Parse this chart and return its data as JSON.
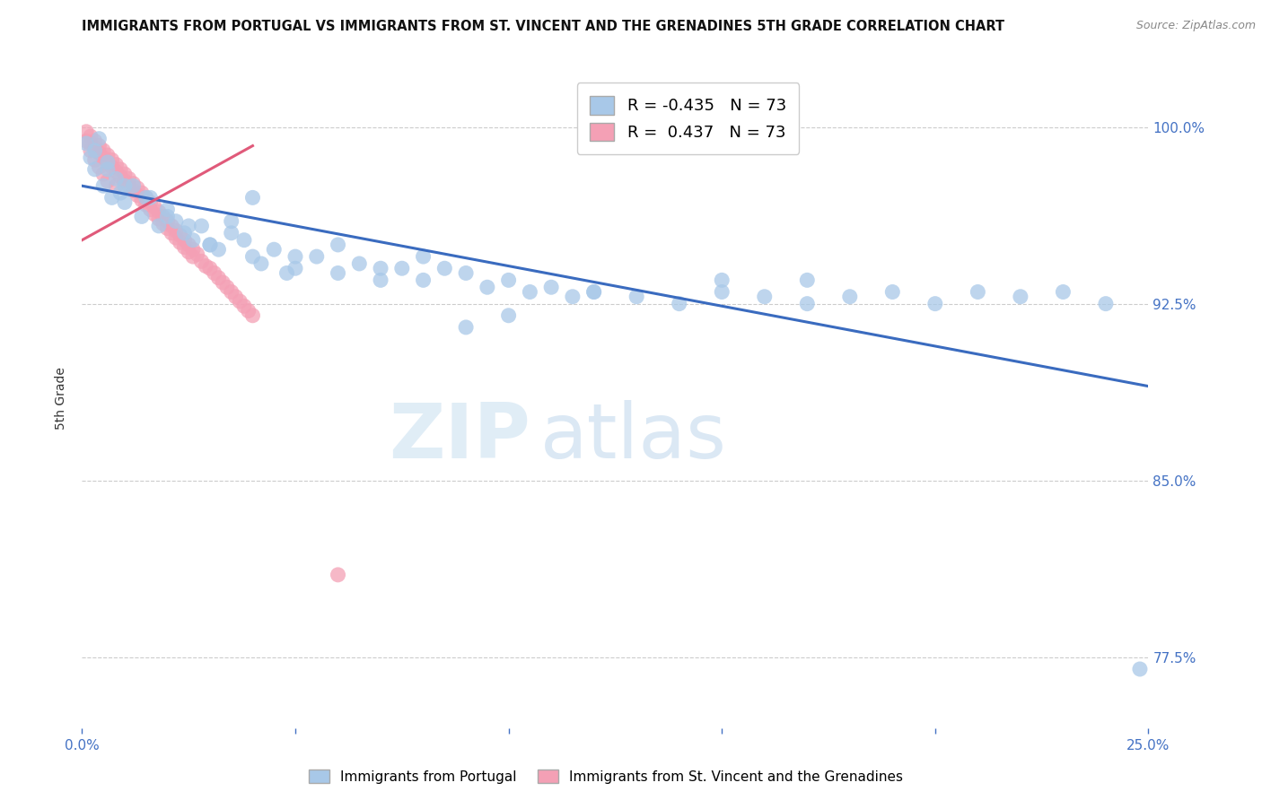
{
  "title": "IMMIGRANTS FROM PORTUGAL VS IMMIGRANTS FROM ST. VINCENT AND THE GRENADINES 5TH GRADE CORRELATION CHART",
  "source": "Source: ZipAtlas.com",
  "ylabel": "5th Grade",
  "yticks": [
    0.775,
    0.85,
    0.925,
    1.0
  ],
  "ytick_labels": [
    "77.5%",
    "85.0%",
    "92.5%",
    "100.0%"
  ],
  "xlim": [
    0.0,
    0.25
  ],
  "ylim": [
    0.745,
    1.025
  ],
  "legend_blue_r": "-0.435",
  "legend_blue_n": "73",
  "legend_pink_r": "0.437",
  "legend_pink_n": "73",
  "blue_color": "#a8c8e8",
  "pink_color": "#f4a0b5",
  "trendline_blue_color": "#3a6bbf",
  "trendline_pink_color": "#e05a7a",
  "watermark_zip": "ZIP",
  "watermark_atlas": "atlas",
  "blue_scatter_x": [
    0.001,
    0.002,
    0.003,
    0.004,
    0.005,
    0.006,
    0.007,
    0.008,
    0.009,
    0.01,
    0.012,
    0.014,
    0.016,
    0.018,
    0.02,
    0.022,
    0.024,
    0.026,
    0.028,
    0.03,
    0.032,
    0.035,
    0.038,
    0.04,
    0.042,
    0.045,
    0.048,
    0.05,
    0.055,
    0.06,
    0.065,
    0.07,
    0.075,
    0.08,
    0.085,
    0.09,
    0.095,
    0.1,
    0.105,
    0.11,
    0.115,
    0.12,
    0.13,
    0.14,
    0.15,
    0.16,
    0.17,
    0.18,
    0.19,
    0.2,
    0.21,
    0.22,
    0.23,
    0.24,
    0.003,
    0.006,
    0.01,
    0.015,
    0.02,
    0.025,
    0.03,
    0.035,
    0.04,
    0.05,
    0.06,
    0.07,
    0.08,
    0.09,
    0.1,
    0.12,
    0.15,
    0.17,
    0.248
  ],
  "blue_scatter_y": [
    0.993,
    0.987,
    0.982,
    0.995,
    0.975,
    0.985,
    0.97,
    0.978,
    0.972,
    0.968,
    0.975,
    0.962,
    0.97,
    0.958,
    0.965,
    0.96,
    0.955,
    0.952,
    0.958,
    0.95,
    0.948,
    0.955,
    0.952,
    0.945,
    0.942,
    0.948,
    0.938,
    0.94,
    0.945,
    0.938,
    0.942,
    0.935,
    0.94,
    0.935,
    0.94,
    0.938,
    0.932,
    0.935,
    0.93,
    0.932,
    0.928,
    0.93,
    0.928,
    0.925,
    0.93,
    0.928,
    0.925,
    0.928,
    0.93,
    0.925,
    0.93,
    0.928,
    0.93,
    0.925,
    0.99,
    0.982,
    0.975,
    0.97,
    0.962,
    0.958,
    0.95,
    0.96,
    0.97,
    0.945,
    0.95,
    0.94,
    0.945,
    0.915,
    0.92,
    0.93,
    0.935,
    0.935,
    0.77
  ],
  "pink_scatter_x": [
    0.001,
    0.002,
    0.002,
    0.003,
    0.003,
    0.004,
    0.004,
    0.005,
    0.005,
    0.006,
    0.006,
    0.007,
    0.007,
    0.008,
    0.008,
    0.009,
    0.009,
    0.01,
    0.01,
    0.011,
    0.011,
    0.012,
    0.012,
    0.013,
    0.013,
    0.014,
    0.014,
    0.015,
    0.015,
    0.016,
    0.016,
    0.017,
    0.017,
    0.018,
    0.018,
    0.019,
    0.019,
    0.02,
    0.02,
    0.021,
    0.021,
    0.022,
    0.022,
    0.023,
    0.023,
    0.024,
    0.024,
    0.025,
    0.025,
    0.026,
    0.026,
    0.027,
    0.028,
    0.029,
    0.03,
    0.031,
    0.032,
    0.033,
    0.034,
    0.035,
    0.036,
    0.037,
    0.038,
    0.039,
    0.04,
    0.001,
    0.002,
    0.003,
    0.004,
    0.005,
    0.006,
    0.06,
    0.008
  ],
  "pink_scatter_y": [
    0.998,
    0.996,
    0.993,
    0.994,
    0.991,
    0.992,
    0.989,
    0.99,
    0.987,
    0.988,
    0.985,
    0.986,
    0.983,
    0.984,
    0.981,
    0.982,
    0.979,
    0.98,
    0.977,
    0.978,
    0.975,
    0.976,
    0.973,
    0.974,
    0.971,
    0.972,
    0.969,
    0.97,
    0.967,
    0.968,
    0.965,
    0.966,
    0.963,
    0.964,
    0.961,
    0.962,
    0.959,
    0.96,
    0.957,
    0.958,
    0.955,
    0.956,
    0.953,
    0.954,
    0.951,
    0.952,
    0.949,
    0.95,
    0.947,
    0.948,
    0.945,
    0.946,
    0.943,
    0.941,
    0.94,
    0.938,
    0.936,
    0.934,
    0.932,
    0.93,
    0.928,
    0.926,
    0.924,
    0.922,
    0.92,
    0.994,
    0.99,
    0.986,
    0.983,
    0.98,
    0.977,
    0.81,
    0.975
  ],
  "blue_trend_x": [
    0.0,
    0.25
  ],
  "blue_trend_y": [
    0.975,
    0.89
  ],
  "pink_trend_x": [
    0.0,
    0.04
  ],
  "pink_trend_y": [
    0.952,
    0.992
  ]
}
